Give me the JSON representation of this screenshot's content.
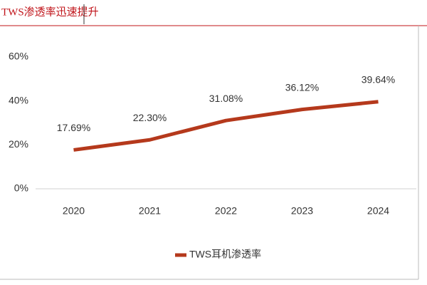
{
  "chart_data": {
    "type": "line",
    "title": "TWS渗透率迅速提升",
    "categories": [
      "2020",
      "2021",
      "2022",
      "2023",
      "2024"
    ],
    "series": [
      {
        "name": "TWS耳机渗透率",
        "color": "#b5391c",
        "values": [
          17.69,
          22.3,
          31.08,
          36.12,
          39.64
        ],
        "value_labels": [
          "17.69%",
          "22.30%",
          "31.08%",
          "36.12%",
          "39.64%"
        ]
      }
    ],
    "ylim": [
      0,
      60
    ],
    "yticks": [
      {
        "value": 0,
        "label": "0%"
      },
      {
        "value": 20,
        "label": "20%"
      },
      {
        "value": 40,
        "label": "40%"
      },
      {
        "value": 60,
        "label": "60%"
      }
    ],
    "grid": false,
    "legend": "bottom"
  }
}
